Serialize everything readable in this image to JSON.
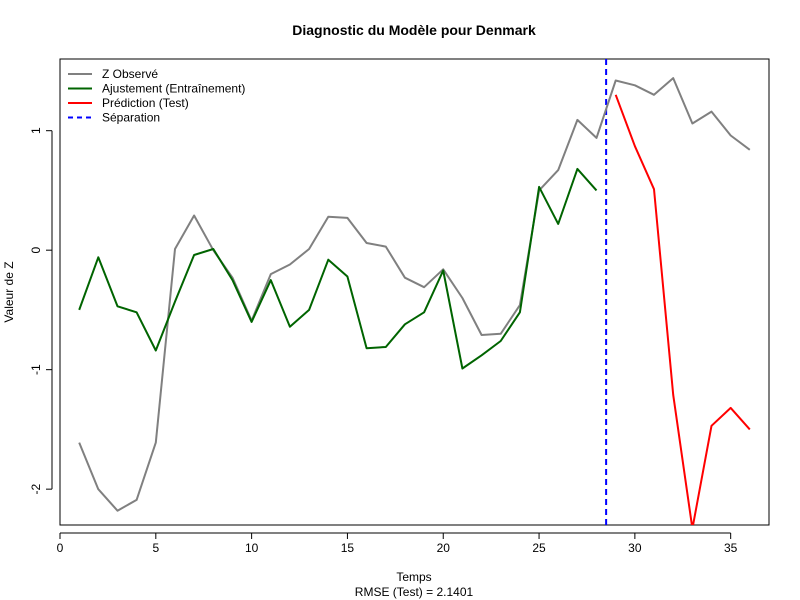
{
  "chart_data": {
    "type": "line",
    "title": "Diagnostic du Modèle pour Denmark",
    "xlabel": "Temps",
    "xlabel_sub": "RMSE (Test) = 2.1401",
    "ylabel": "Valeur de Z",
    "xlim": [
      0,
      37
    ],
    "ylim": [
      -2.3,
      1.6
    ],
    "xticks": [
      0,
      5,
      10,
      15,
      20,
      25,
      30,
      35
    ],
    "yticks": [
      -2,
      -1,
      0,
      1
    ],
    "grid": false,
    "legend_position": "top-left",
    "separation_x": 28.5,
    "series": [
      {
        "name": "Z Observé",
        "color": "#808080",
        "style": "solid",
        "x": [
          1,
          2,
          3,
          4,
          5,
          6,
          7,
          8,
          9,
          10,
          11,
          12,
          13,
          14,
          15,
          16,
          17,
          18,
          19,
          20,
          21,
          22,
          23,
          24,
          25,
          26,
          27,
          28,
          29,
          30,
          31,
          32,
          33,
          34,
          35,
          36
        ],
        "values": [
          -1.61,
          -2.0,
          -2.18,
          -2.09,
          -1.61,
          0.01,
          0.29,
          0.0,
          -0.23,
          -0.59,
          -0.2,
          -0.12,
          0.01,
          0.28,
          0.27,
          0.06,
          0.03,
          -0.23,
          -0.31,
          -0.16,
          -0.4,
          -0.71,
          -0.7,
          -0.46,
          0.5,
          0.67,
          1.09,
          0.94,
          1.42,
          1.38,
          1.3,
          1.44,
          1.06,
          1.16,
          0.96,
          0.84
        ]
      },
      {
        "name": "Ajustement (Entraînement)",
        "color": "#006400",
        "style": "solid",
        "x": [
          1,
          2,
          3,
          4,
          5,
          6,
          7,
          8,
          9,
          10,
          11,
          12,
          13,
          14,
          15,
          16,
          17,
          18,
          19,
          20,
          21,
          22,
          23,
          24,
          25,
          26,
          27,
          28
        ],
        "values": [
          -0.5,
          -0.06,
          -0.47,
          -0.52,
          -0.84,
          -0.43,
          -0.04,
          0.01,
          -0.25,
          -0.6,
          -0.25,
          -0.64,
          -0.5,
          -0.08,
          -0.22,
          -0.82,
          -0.81,
          -0.62,
          -0.52,
          -0.17,
          -0.99,
          -0.88,
          -0.76,
          -0.52,
          0.53,
          0.22,
          0.68,
          0.5
        ]
      },
      {
        "name": "Prédiction (Test)",
        "color": "#ff0000",
        "style": "solid",
        "x": [
          29,
          30,
          31,
          32,
          33,
          34,
          35,
          36
        ],
        "values": [
          1.3,
          0.87,
          0.51,
          -1.21,
          -2.33,
          -1.47,
          -1.32,
          -1.5
        ]
      }
    ],
    "legend": [
      {
        "label": "Z Observé",
        "color": "#808080",
        "style": "solid"
      },
      {
        "label": "Ajustement (Entraînement)",
        "color": "#006400",
        "style": "solid"
      },
      {
        "label": "Prédiction (Test)",
        "color": "#ff0000",
        "style": "solid"
      },
      {
        "label": "Séparation",
        "color": "#0000ff",
        "style": "dashed"
      }
    ]
  }
}
